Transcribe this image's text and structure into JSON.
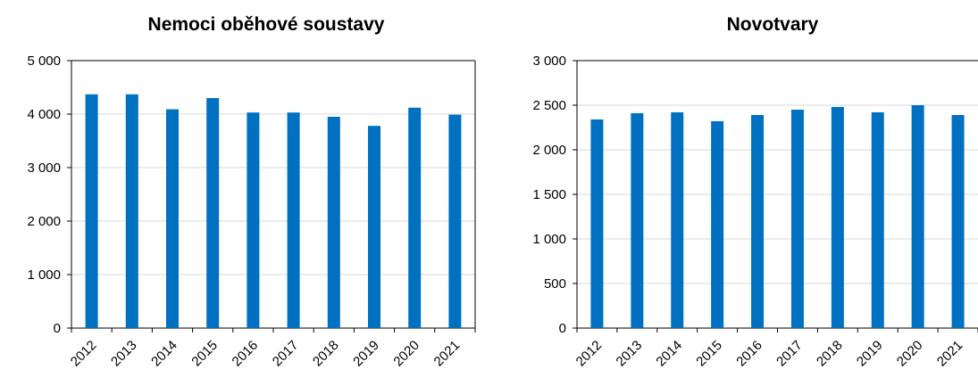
{
  "chart_data": [
    {
      "type": "bar",
      "title": "Nemoci oběhové soustavy",
      "categories": [
        "2012",
        "2013",
        "2014",
        "2015",
        "2016",
        "2017",
        "2018",
        "2019",
        "2020",
        "2021"
      ],
      "values": [
        4370,
        4370,
        4090,
        4300,
        4030,
        4030,
        3950,
        3780,
        4120,
        3990
      ],
      "ylim": [
        0,
        5000
      ],
      "yticks": [
        0,
        1000,
        2000,
        3000,
        4000,
        5000
      ],
      "ytick_labels": [
        "0",
        "1 000",
        "2 000",
        "3 000",
        "4 000",
        "5 000"
      ],
      "grid": true,
      "bar_color": "#0070c0",
      "xlabel": "",
      "ylabel": ""
    },
    {
      "type": "bar",
      "title": "Novotvary",
      "categories": [
        "2012",
        "2013",
        "2014",
        "2015",
        "2016",
        "2017",
        "2018",
        "2019",
        "2020",
        "2021"
      ],
      "values": [
        2340,
        2410,
        2420,
        2320,
        2390,
        2450,
        2480,
        2420,
        2500,
        2390
      ],
      "ylim": [
        0,
        3000
      ],
      "yticks": [
        0,
        500,
        1000,
        1500,
        2000,
        2500,
        3000
      ],
      "ytick_labels": [
        "0",
        "500",
        "1 000",
        "1 500",
        "2 000",
        "2 500",
        "3 000"
      ],
      "grid": true,
      "bar_color": "#0070c0",
      "xlabel": "",
      "ylabel": ""
    }
  ]
}
